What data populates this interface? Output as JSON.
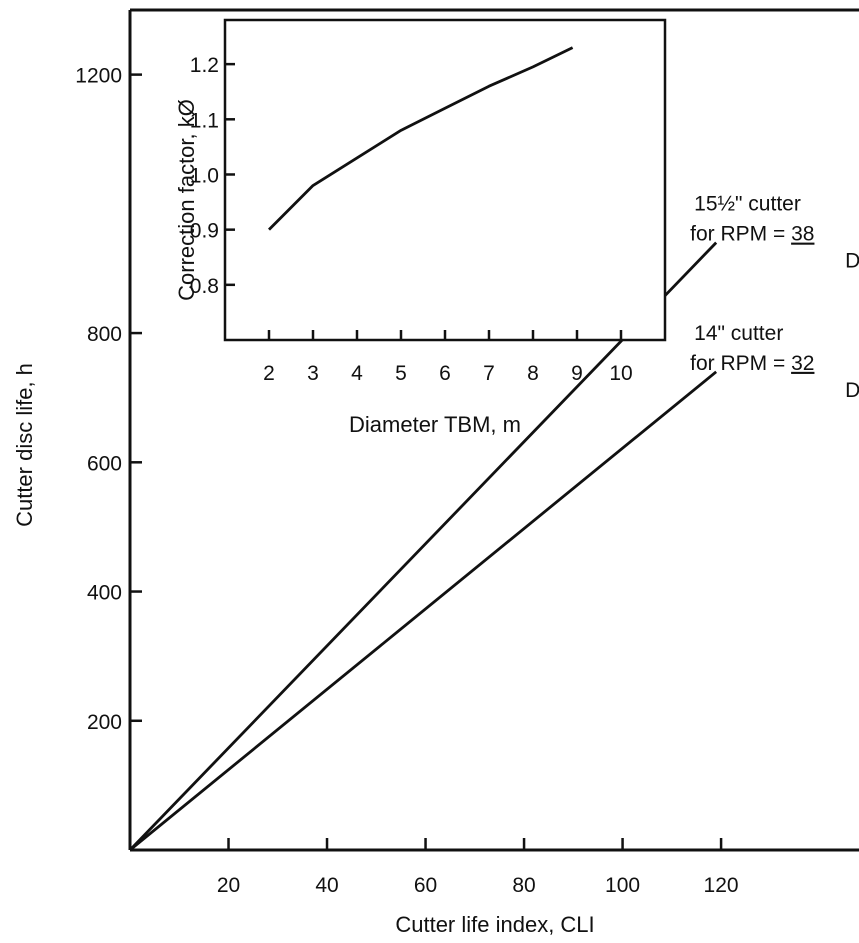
{
  "chart_data": [
    {
      "type": "line",
      "title": "",
      "xlabel": "Cutter life index, CLI",
      "ylabel": "Cutter disc life, h",
      "xlim": [
        0,
        148
      ],
      "ylim": [
        0,
        1300
      ],
      "x_ticks": [
        20,
        40,
        60,
        80,
        100,
        120
      ],
      "y_ticks": [
        200,
        400,
        600,
        800,
        1200
      ],
      "series": [
        {
          "name": "15½\" cutter for RPM = 38/D",
          "label_line1": "15½\" cutter",
          "label_prefix": "for RPM = ",
          "label_num": "38",
          "label_den": "D",
          "x": [
            0,
            119
          ],
          "y": [
            0,
            940
          ]
        },
        {
          "name": "14\" cutter for RPM = 32/D",
          "label_line1": "14\" cutter",
          "label_prefix": "for RPM = ",
          "label_num": "32",
          "label_den": "D",
          "x": [
            0,
            119
          ],
          "y": [
            0,
            740
          ]
        }
      ]
    },
    {
      "type": "line",
      "title": "",
      "xlabel": "Diameter TBM, m",
      "ylabel": "Correction factor, kØ",
      "xlim": [
        1,
        11
      ],
      "ylim": [
        0.7,
        1.28
      ],
      "x_ticks": [
        2,
        3,
        4,
        5,
        6,
        7,
        8,
        9,
        10
      ],
      "y_ticks": [
        0.8,
        0.9,
        1.0,
        1.1,
        1.2
      ],
      "series": [
        {
          "x": [
            2,
            3,
            4,
            5,
            6,
            7,
            8,
            8.9
          ],
          "y": [
            0.9,
            0.98,
            1.03,
            1.08,
            1.12,
            1.16,
            1.195,
            1.23
          ]
        }
      ]
    }
  ]
}
